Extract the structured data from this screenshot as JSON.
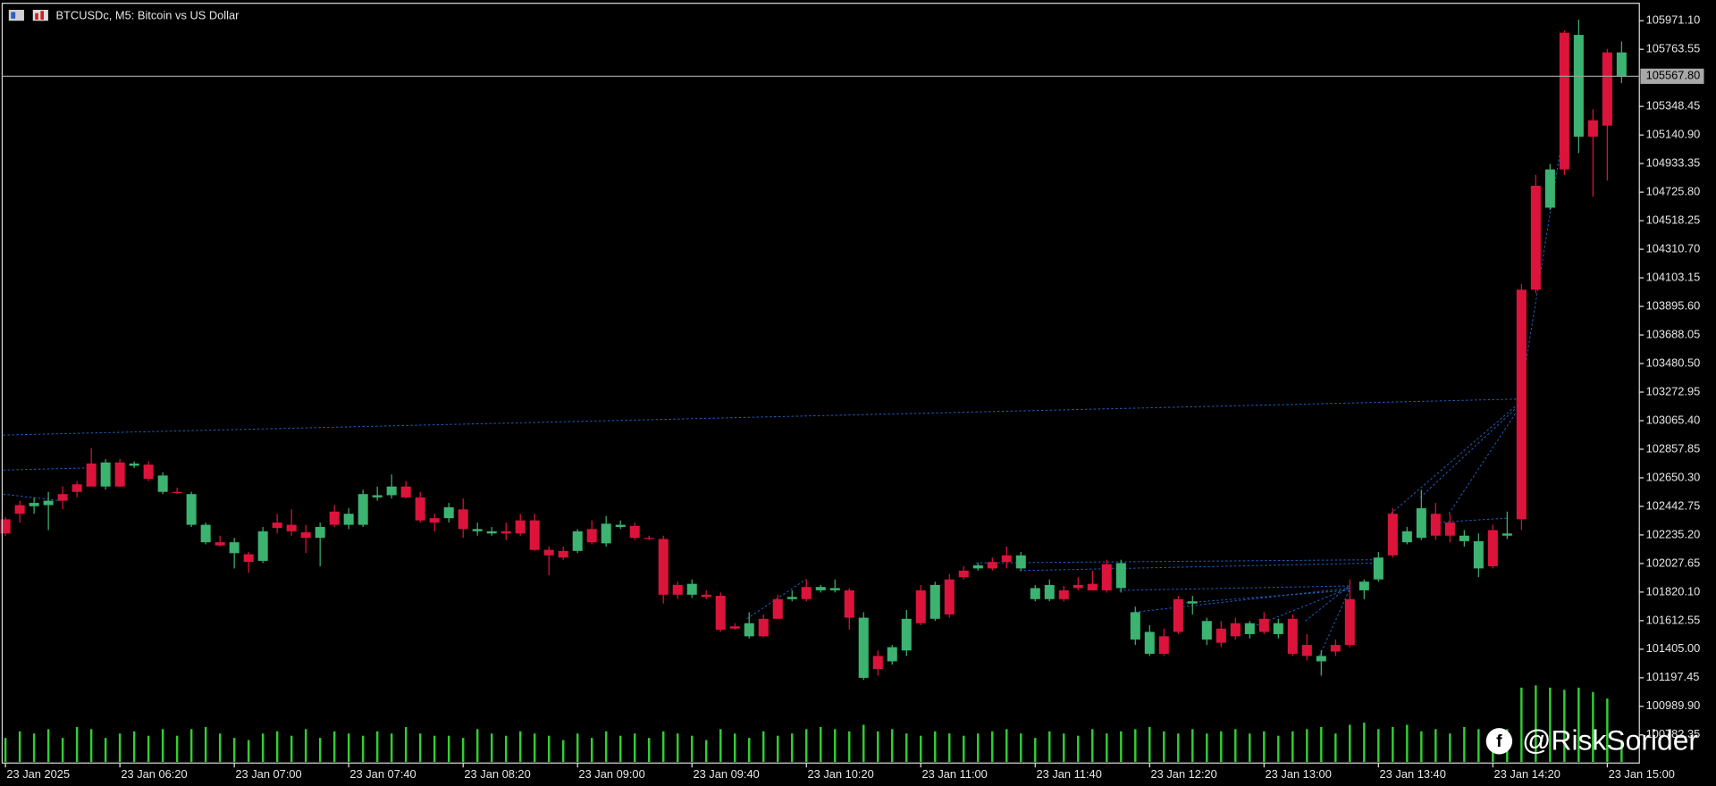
{
  "chart_data": {
    "type": "candlestick",
    "title": "BTCUSDc, M5:  Bitcoin vs US Dollar",
    "watermark": "@RiskSorider",
    "up_color": "#dc143c",
    "down_color": "#3cb371",
    "volume_color": "#32cd32",
    "categories": [
      "23 Jan 2025",
      null,
      null,
      null,
      null,
      null,
      null,
      null,
      "23 Jan 06:20",
      null,
      null,
      null,
      null,
      null,
      null,
      null,
      "23 Jan 07:00",
      null,
      null,
      null,
      null,
      null,
      null,
      null,
      "23 Jan 07:40",
      null,
      null,
      null,
      null,
      null,
      null,
      null,
      "23 Jan 08:20",
      null,
      null,
      null,
      null,
      null,
      null,
      null,
      "23 Jan 09:00",
      null,
      null,
      null,
      null,
      null,
      null,
      null,
      "23 Jan 09:40",
      null,
      null,
      null,
      null,
      null,
      null,
      null,
      "23 Jan 10:20",
      null,
      null,
      null,
      null,
      null,
      null,
      null,
      "23 Jan 11:00",
      null,
      null,
      null,
      null,
      null,
      null,
      null,
      "23 Jan 11:40",
      null,
      null,
      null,
      null,
      null,
      null,
      null,
      "23 Jan 12:20",
      null,
      null,
      null,
      null,
      null,
      null,
      null,
      "23 Jan 13:00",
      null,
      null,
      null,
      null,
      null,
      null,
      null,
      "23 Jan 13:40",
      null,
      null,
      null,
      null,
      null,
      null,
      null,
      "23 Jan 14:20",
      null,
      null,
      null,
      null,
      null,
      null,
      null,
      "23 Jan 15:00",
      null
    ],
    "open": [
      102246,
      102389,
      102468,
      102484,
      102484,
      102548,
      102587,
      102762,
      102587,
      102754,
      102643,
      102667,
      102540,
      102532,
      102309,
      102159,
      102182,
      102039,
      102262,
      102286,
      102262,
      102214,
      102293,
      102309,
      102389,
      102532,
      102524,
      102587,
      102508,
      102341,
      102325,
      102436,
      102278,
      102278,
      102262,
      102246,
      102246,
      102127,
      102087,
      102071,
      102262,
      102182,
      102317,
      102309,
      102214,
      102206,
      101801,
      101801,
      101880,
      101785,
      101547,
      101555,
      101594,
      101499,
      101626,
      101785,
      101769,
      101857,
      101849,
      101634,
      101634,
      101261,
      101420,
      101626,
      101594,
      101872,
      101658,
      101928,
      102015,
      101992,
      102039,
      102087,
      101849,
      101872,
      101769,
      101849,
      101833,
      101833,
      102031,
      101674,
      101531,
      101372,
      101531,
      101753,
      101610,
      101452,
      101499,
      101594,
      101531,
      101594,
      101372,
      101356,
      101356,
      101388,
      101436,
      101896,
      102071,
      102087,
      102262,
      102429,
      102230,
      102230,
      102230,
      102190,
      102008,
      102246,
      102349,
      104017,
      104891,
      104891,
      105868,
      105129,
      105209,
      105741
    ],
    "high": [
      102365,
      102484,
      102508,
      102548,
      102587,
      102627,
      102865,
      102786,
      102786,
      102770,
      102770,
      102691,
      102579,
      102548,
      102325,
      102230,
      102214,
      102111,
      102293,
      102389,
      102421,
      102309,
      102325,
      102452,
      102429,
      102564,
      102587,
      102675,
      102627,
      102548,
      102389,
      102468,
      102500,
      102325,
      102293,
      102325,
      102389,
      102389,
      102151,
      102151,
      102278,
      102341,
      102373,
      102341,
      102325,
      102230,
      102230,
      101896,
      101912,
      101833,
      101817,
      101594,
      101674,
      101658,
      101801,
      101833,
      101912,
      101872,
      101912,
      101849,
      101674,
      101396,
      101436,
      101690,
      101872,
      101896,
      101952,
      102008,
      102031,
      102071,
      102151,
      102111,
      101872,
      101912,
      101865,
      101928,
      101976,
      102055,
      102055,
      101714,
      101579,
      101555,
      101793,
      101793,
      101634,
      101610,
      101634,
      101610,
      101674,
      101626,
      101658,
      101515,
      101396,
      101475,
      101912,
      101912,
      102111,
      102429,
      102293,
      102564,
      102468,
      102389,
      102270,
      102246,
      102309,
      102405,
      104057,
      104851,
      104931,
      105900,
      105979,
      105328,
      105765,
      105820
    ],
    "low": [
      102230,
      102325,
      102389,
      102270,
      102421,
      102508,
      102587,
      102564,
      102587,
      102722,
      102627,
      102532,
      102532,
      102293,
      102167,
      102151,
      101992,
      101960,
      102031,
      102246,
      102230,
      102103,
      102008,
      102293,
      102278,
      102293,
      102484,
      102500,
      102500,
      102325,
      102262,
      102325,
      102214,
      102230,
      102230,
      102198,
      102230,
      102119,
      101944,
      102055,
      102103,
      102167,
      102151,
      102278,
      102198,
      102198,
      101737,
      101769,
      101777,
      101769,
      101531,
      101547,
      101483,
      101491,
      101626,
      101753,
      101753,
      101817,
      101817,
      101547,
      101182,
      101213,
      101293,
      101356,
      101579,
      101610,
      101634,
      101912,
      101976,
      101976,
      101992,
      101976,
      101753,
      101753,
      101753,
      101833,
      101833,
      101817,
      101817,
      101436,
      101356,
      101356,
      101515,
      101658,
      101436,
      101420,
      101475,
      101483,
      101515,
      101483,
      101356,
      101324,
      101213,
      101356,
      101420,
      101769,
      101896,
      102071,
      102167,
      102198,
      102198,
      102182,
      102151,
      101928,
      101992,
      102206,
      102270,
      103993,
      104597,
      104851,
      105010,
      104692,
      104811,
      105518
    ],
    "close": [
      102349,
      102452,
      102444,
      102452,
      102532,
      102603,
      102754,
      102587,
      102762,
      102738,
      102746,
      102548,
      102548,
      102309,
      102182,
      102182,
      102103,
      102095,
      102047,
      102325,
      102309,
      102254,
      102214,
      102405,
      102309,
      102309,
      102508,
      102524,
      102587,
      102508,
      102357,
      102357,
      102421,
      102262,
      102246,
      102262,
      102341,
      102341,
      102127,
      102119,
      102119,
      102278,
      102174,
      102293,
      102301,
      102214,
      102206,
      101872,
      101801,
      101801,
      101793,
      101571,
      101499,
      101626,
      101769,
      101769,
      101857,
      101833,
      101833,
      101833,
      101197,
      101356,
      101317,
      101396,
      101833,
      101626,
      101912,
      101976,
      101992,
      102039,
      102087,
      101992,
      101769,
      101769,
      101833,
      101872,
      101880,
      102023,
      101849,
      101475,
      101372,
      101499,
      101769,
      101737,
      101475,
      101555,
      101594,
      101515,
      101626,
      101515,
      101626,
      101436,
      101317,
      101436,
      101769,
      101833,
      101912,
      102389,
      102182,
      102214,
      102389,
      102325,
      102190,
      101992,
      102270,
      102230,
      104017,
      104772,
      104613,
      105884,
      105129,
      105248,
      105741,
      105567.8
    ],
    "volume": [
      22,
      28,
      26,
      30,
      22,
      32,
      30,
      22,
      26,
      28,
      24,
      30,
      24,
      30,
      32,
      26,
      22,
      20,
      26,
      28,
      24,
      30,
      22,
      28,
      26,
      24,
      28,
      26,
      32,
      26,
      24,
      24,
      22,
      30,
      26,
      24,
      28,
      26,
      24,
      20,
      26,
      22,
      28,
      24,
      26,
      22,
      28,
      26,
      24,
      20,
      30,
      26,
      22,
      28,
      24,
      26,
      30,
      32,
      30,
      28,
      34,
      28,
      30,
      26,
      24,
      28,
      26,
      24,
      26,
      28,
      30,
      26,
      22,
      28,
      26,
      24,
      30,
      26,
      28,
      30,
      32,
      28,
      26,
      30,
      26,
      28,
      30,
      26,
      28,
      24,
      28,
      30,
      32,
      26,
      34,
      36,
      30,
      32,
      34,
      28,
      30,
      26,
      32,
      30,
      28,
      30,
      68,
      70,
      68,
      66,
      68,
      64,
      58,
      20
    ],
    "volume_lim": [
      0,
      80
    ],
    "ylim": [
      100586,
      106082
    ],
    "yticks": [
      {
        "value": 105971.1,
        "label": "105971.10"
      },
      {
        "value": 105763.55,
        "label": "105763.55"
      },
      {
        "value": 105348.45,
        "label": "105348.45"
      },
      {
        "value": 105140.9,
        "label": "105140.90"
      },
      {
        "value": 104933.35,
        "label": "104933.35"
      },
      {
        "value": 104725.8,
        "label": "104725.80"
      },
      {
        "value": 104518.25,
        "label": "104518.25"
      },
      {
        "value": 104310.7,
        "label": "104310.70"
      },
      {
        "value": 104103.15,
        "label": "104103.15"
      },
      {
        "value": 103895.6,
        "label": "103895.60"
      },
      {
        "value": 103688.05,
        "label": "103688.05"
      },
      {
        "value": 103480.5,
        "label": "103480.50"
      },
      {
        "value": 103272.95,
        "label": "103272.95"
      },
      {
        "value": 103065.4,
        "label": "103065.40"
      },
      {
        "value": 102857.85,
        "label": "102857.85"
      },
      {
        "value": 102650.3,
        "label": "102650.30"
      },
      {
        "value": 102442.75,
        "label": "102442.75"
      },
      {
        "value": 102235.2,
        "label": "102235.20"
      },
      {
        "value": 102027.65,
        "label": "102027.65"
      },
      {
        "value": 101820.1,
        "label": "101820.10"
      },
      {
        "value": 101612.55,
        "label": "101612.55"
      },
      {
        "value": 101405,
        "label": "101405.00"
      },
      {
        "value": 101197.45,
        "label": "101197.45"
      },
      {
        "value": 100989.9,
        "label": "100989.90"
      },
      {
        "value": 100782.35,
        "label": "100782.35"
      }
    ],
    "last_price": {
      "value": 105567.8,
      "label": "105567.80"
    }
  }
}
